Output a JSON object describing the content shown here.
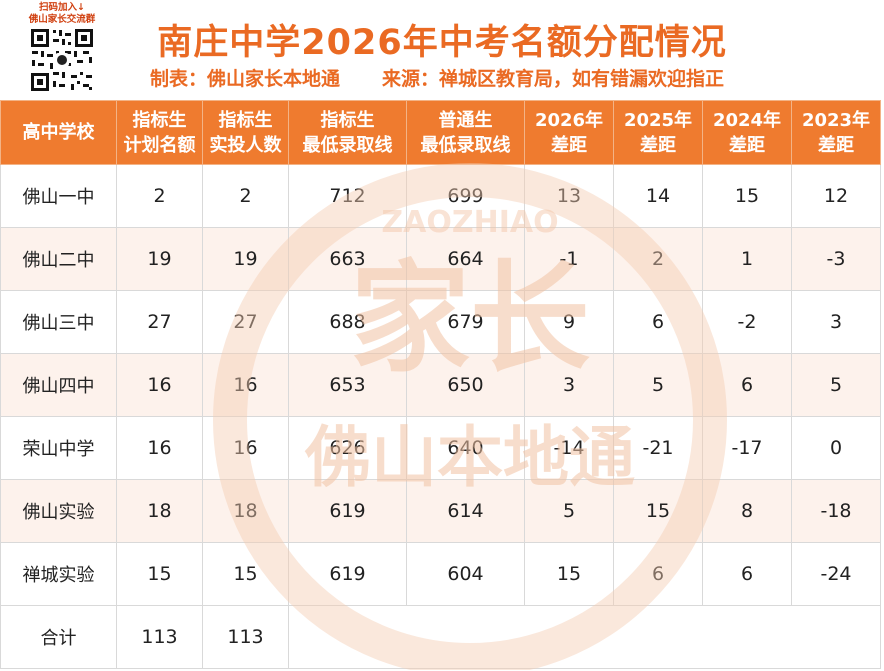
{
  "header": {
    "qr_caption_line1": "扫码加入↓",
    "qr_caption_line2": "佛山家长交流群",
    "title": "南庄中学2026年中考名额分配情况",
    "subtitle_maker": "制表：佛山家长本地通",
    "subtitle_source": "来源：禅城区教育局，如有错漏欢迎指正"
  },
  "table": {
    "columns": [
      {
        "line1": "高中学校",
        "line2": ""
      },
      {
        "line1": "指标生",
        "line2": "计划名额"
      },
      {
        "line1": "指标生",
        "line2": "实投人数"
      },
      {
        "line1": "指标生",
        "line2": "最低录取线"
      },
      {
        "line1": "普通生",
        "line2": "最低录取线"
      },
      {
        "line1": "2026年",
        "line2": "差距"
      },
      {
        "line1": "2025年",
        "line2": "差距"
      },
      {
        "line1": "2024年",
        "line2": "差距"
      },
      {
        "line1": "2023年",
        "line2": "差距"
      }
    ],
    "rows": [
      [
        "佛山一中",
        "2",
        "2",
        "712",
        "699",
        "13",
        "14",
        "15",
        "12"
      ],
      [
        "佛山二中",
        "19",
        "19",
        "663",
        "664",
        "-1",
        "2",
        "1",
        "-3"
      ],
      [
        "佛山三中",
        "27",
        "27",
        "688",
        "679",
        "9",
        "6",
        "-2",
        "3"
      ],
      [
        "佛山四中",
        "16",
        "16",
        "653",
        "650",
        "3",
        "5",
        "6",
        "5"
      ],
      [
        "荣山中学",
        "16",
        "16",
        "626",
        "640",
        "-14",
        "-21",
        "-17",
        "0"
      ],
      [
        "佛山实验",
        "18",
        "18",
        "619",
        "614",
        "5",
        "15",
        "8",
        "-18"
      ],
      [
        "禅城实验",
        "15",
        "15",
        "619",
        "604",
        "15",
        "6",
        "6",
        "-24"
      ]
    ],
    "total": {
      "label": "合计",
      "plan": "113",
      "actual": "113"
    }
  },
  "watermark": {
    "line1": "家长",
    "line2": "佛山本地通",
    "ring": "ZAOZHIAO"
  },
  "colors": {
    "accent": "#ea6a23",
    "header_fill": "#ef7b2f",
    "row_tint": "#fce8dc",
    "watermark": "#f2c3a4"
  }
}
